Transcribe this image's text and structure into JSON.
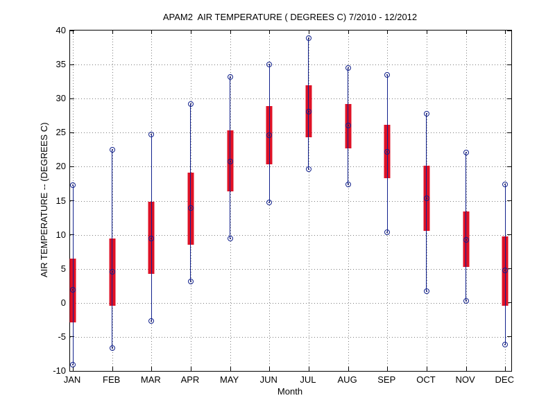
{
  "figure": {
    "background": "#ffffff"
  },
  "chart_data": {
    "type": "box",
    "title": "APAM2  AIR TEMPERATURE ( DEGREES C) 7/2010 - 12/2012",
    "xlabel": "Month",
    "ylabel": "AIR TEMPERATURE -- (DEGREES C)",
    "ylim": [
      -10,
      40
    ],
    "yticks": [
      40,
      35,
      30,
      25,
      20,
      15,
      10,
      5,
      0,
      -5,
      -10
    ],
    "grid": "dotted",
    "legend": "none",
    "categories": [
      "JAN",
      "FEB",
      "MAR",
      "APR",
      "MAY",
      "JUN",
      "JUL",
      "AUG",
      "SEP",
      "OCT",
      "NOV",
      "DEC"
    ],
    "series": [
      {
        "name": "max",
        "values": [
          17.3,
          22.5,
          24.7,
          29.2,
          33.2,
          35.0,
          38.9,
          34.5,
          33.5,
          27.8,
          22.1,
          17.4
        ]
      },
      {
        "name": "box_top",
        "values": [
          6.5,
          9.5,
          14.8,
          19.1,
          25.3,
          28.9,
          32.0,
          29.2,
          26.1,
          20.1,
          13.4,
          9.8
        ]
      },
      {
        "name": "mean",
        "values": [
          1.9,
          4.6,
          9.5,
          13.9,
          20.8,
          24.6,
          28.1,
          26.0,
          22.2,
          15.4,
          9.2,
          4.8
        ]
      },
      {
        "name": "box_bottom",
        "values": [
          -2.9,
          -0.4,
          4.3,
          8.5,
          16.4,
          20.3,
          24.3,
          22.7,
          18.3,
          10.6,
          5.3,
          -0.4
        ]
      },
      {
        "name": "min",
        "values": [
          -9.1,
          -6.6,
          -2.7,
          3.1,
          9.4,
          14.7,
          19.6,
          17.4,
          10.4,
          1.7,
          0.3,
          -6.1
        ]
      }
    ],
    "colors": {
      "box": "#df1126",
      "whisker": "#10208c",
      "marker_ring": "#10208c",
      "marker_dot": "#151566",
      "grid": "#7a7a7a",
      "axis": "#000000",
      "text": "#000000"
    }
  }
}
